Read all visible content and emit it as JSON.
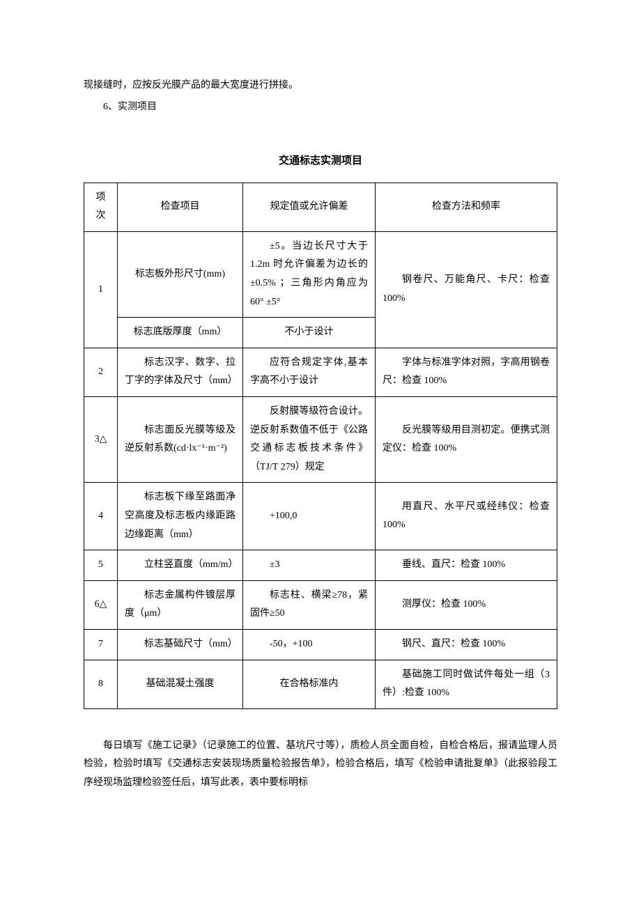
{
  "intro": {
    "line1": "现接缝时，应按反光膜产品的最大宽度进行拼接。",
    "line2": "6、实测项目"
  },
  "table": {
    "title": "交通标志实测项目",
    "headers": [
      "项次",
      "检查项目",
      "规定值或允许偏差",
      "检查方法和频率"
    ],
    "rows": [
      {
        "seq": "1",
        "items": [
          {
            "name": "标志板外形尺寸(mm)",
            "spec": "±5。当边长尺寸大于 1.2m 时允许偏差为边长的±0.5% ；三角形内角应为 60° ±5°"
          },
          {
            "name": "标志底版厚度（mm）",
            "spec": "不小于设计"
          }
        ],
        "method": "钢卷尺、万能角尺、卡尺：检查 100%"
      },
      {
        "seq": "2",
        "item": "标志汉字、数字、拉丁字的字体及尺寸（mm）",
        "spec": "应符合规定字体,基本字高不小于设计",
        "method": "字体与标准字体对照，字高用钢卷尺：检查 100%"
      },
      {
        "seq": "3△",
        "item": "标志面反光膜等级及逆反射系数(cd·lx⁻¹·m⁻²)",
        "spec": "反射膜等级符合设计。逆反射系数值不低于《公路交通标志板技术条件》（TJ/T 279）规定",
        "method": "反光膜等级用目测初定。便携式测定仪：检查 100%"
      },
      {
        "seq": "4",
        "item": "标志板下缘至路面净空高度及标志板内缘距路边缘距离（mm）",
        "spec": "+100,0",
        "method": "用直尺、水平尺或经纬仪：检查 100%"
      },
      {
        "seq": "5",
        "item": "立柱竖直度（mm/m）",
        "spec": "±3",
        "method": "垂线、直尺：检查 100%"
      },
      {
        "seq": "6△",
        "item": "标志金属构件镀层厚度（μm）",
        "spec": "标志柱、横梁≥78，紧固件≥50",
        "method": "测厚仪：检查 100%"
      },
      {
        "seq": "7",
        "item": "标志基础尺寸（mm）",
        "spec": "-50，+100",
        "method": "钢尺、直尺：检查 100%"
      },
      {
        "seq": "8",
        "item": "基础混凝土强度",
        "spec": "在合格标准内",
        "method": "基础施工同时做试件每处一组（3 件）:检查 100%"
      }
    ]
  },
  "outro": {
    "text": "每日填写《施工记录》（记录施工的位置、基坑尺寸等），质检人员全面自检，自检合格后，报请监理人员检验，检验时填写《交通标志安装现场质量检验报告单》，检验合格后，填写《检验申请批复单》（此报验段工序经现场监理检验签任后，填写此表，表中要标明标"
  },
  "style": {
    "background_color": "#ffffff",
    "text_color": "#000000",
    "border_color": "#000000",
    "font_family": "SimSun",
    "base_fontsize": 14,
    "title_fontsize": 15
  }
}
